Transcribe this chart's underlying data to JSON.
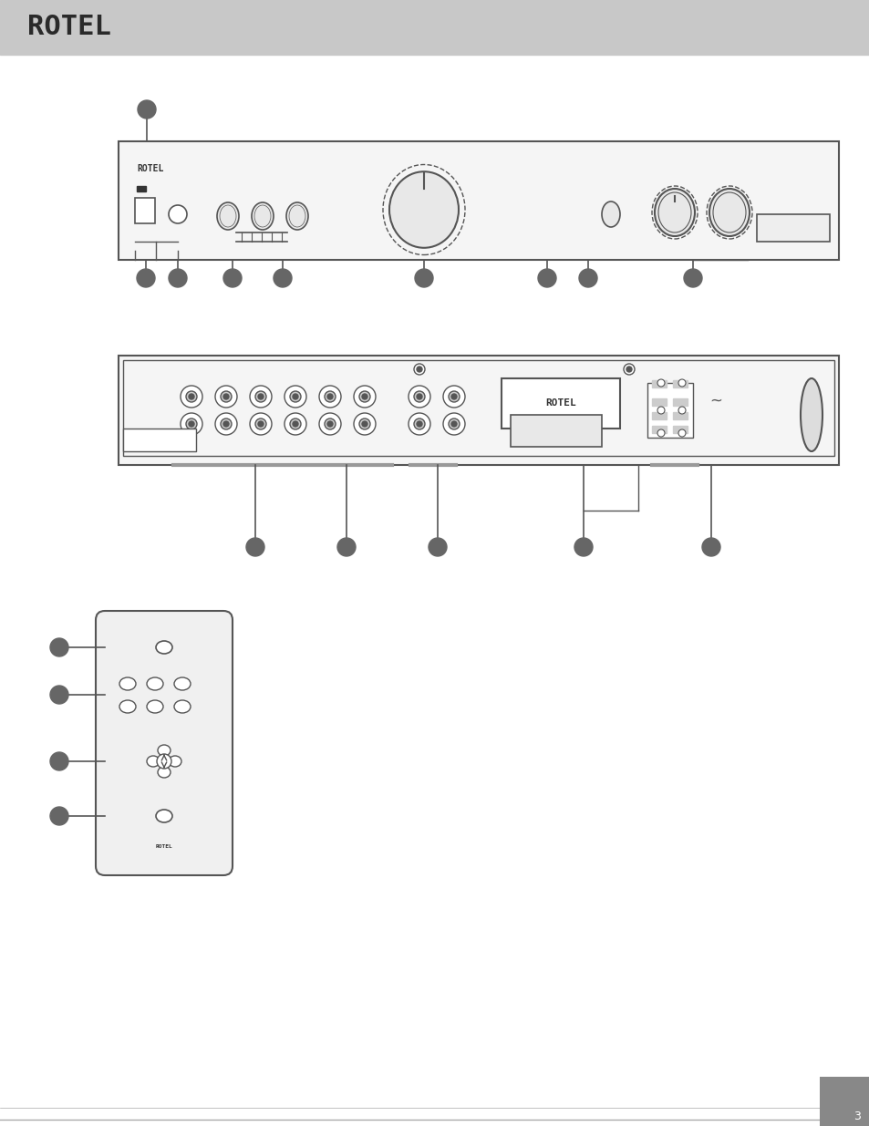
{
  "bg_color": "#ffffff",
  "header_color": "#c8c8c8",
  "header_text": "ROTEL",
  "header_text_color": "#2a2a2a",
  "line_color": "#555555",
  "knob_color": "#e8e8e8",
  "knob_outline": "#555555",
  "dot_color": "#666666",
  "fig_width": 9.54,
  "fig_height": 12.35
}
